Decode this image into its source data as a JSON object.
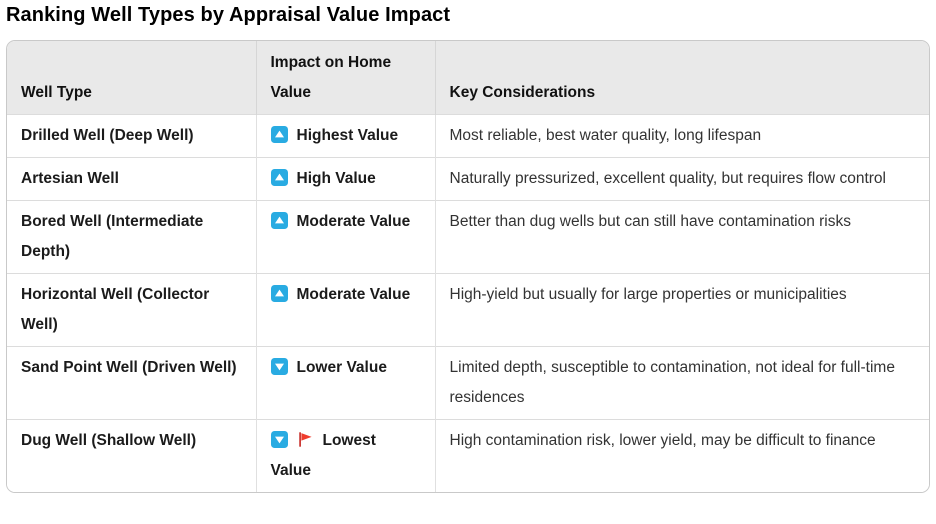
{
  "title": "Ranking Well Types by Appraisal Value Impact",
  "table": {
    "headers": [
      "Well Type",
      "Impact on Home Value",
      "Key Considerations"
    ],
    "rows": [
      {
        "well_type": "Drilled Well (Deep Well)",
        "icons": [
          "up-arrow"
        ],
        "impact": "Highest Value",
        "considerations": "Most reliable, best water quality, long lifespan"
      },
      {
        "well_type": "Artesian Well",
        "icons": [
          "up-arrow"
        ],
        "impact": "High Value",
        "considerations": "Naturally pressurized, excellent quality, but requires flow control"
      },
      {
        "well_type": "Bored Well (Intermediate Depth)",
        "icons": [
          "up-arrow"
        ],
        "impact": "Moderate Value",
        "considerations": "Better than dug wells but can still have contamination risks"
      },
      {
        "well_type": "Horizontal Well (Collector Well)",
        "icons": [
          "up-arrow"
        ],
        "impact": "Moderate Value",
        "considerations": "High-yield but usually for large properties or municipalities"
      },
      {
        "well_type": "Sand Point Well (Driven Well)",
        "icons": [
          "down-arrow"
        ],
        "impact": "Lower Value",
        "considerations": "Limited depth, susceptible to contamination, not ideal for full-time residences"
      },
      {
        "well_type": "Dug Well (Shallow Well)",
        "icons": [
          "down-arrow",
          "red-flag"
        ],
        "impact": "Lowest Value",
        "considerations": "High contamination risk, lower yield, may be difficult to finance"
      }
    ]
  },
  "colors": {
    "arrow_icon_blue": "#29abe2",
    "flag_red": "#ef3c2d",
    "flag_pole_red": "#c9302c",
    "header_bg": "#e9e9e9",
    "border": "#c9c9c9",
    "row_divider": "#dcdcdc"
  }
}
